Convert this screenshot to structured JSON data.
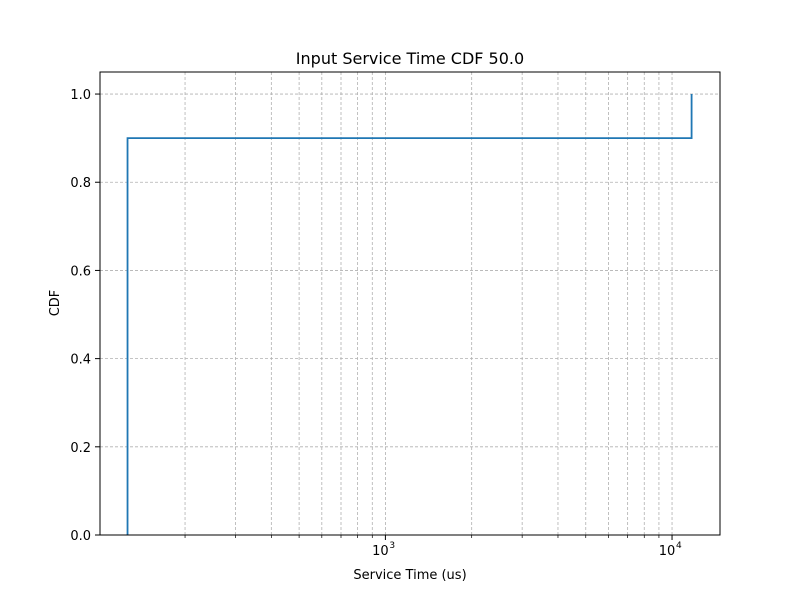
{
  "chart_data": {
    "type": "line",
    "title": "Input Service Time CDF 50.0",
    "xlabel": "Service Time (us)",
    "ylabel": "CDF",
    "x_scale": "log",
    "xlim": [
      101,
      14700
    ],
    "ylim": [
      0.0,
      1.05
    ],
    "grid": true,
    "x_major_ticks": [
      {
        "value": 1000,
        "base": "10",
        "exponent": "3"
      },
      {
        "value": 10000,
        "base": "10",
        "exponent": "4"
      }
    ],
    "y_ticks": [
      {
        "value": 0.0,
        "label": "0.0"
      },
      {
        "value": 0.2,
        "label": "0.2"
      },
      {
        "value": 0.4,
        "label": "0.4"
      },
      {
        "value": 0.6,
        "label": "0.6"
      },
      {
        "value": 0.8,
        "label": "0.8"
      },
      {
        "value": 1.0,
        "label": "1.0"
      }
    ],
    "series": [
      {
        "color": "#1f77b4",
        "x": [
          126,
          126,
          11700,
          11700
        ],
        "y": [
          0.0,
          0.9,
          0.9,
          1.0
        ]
      }
    ]
  }
}
